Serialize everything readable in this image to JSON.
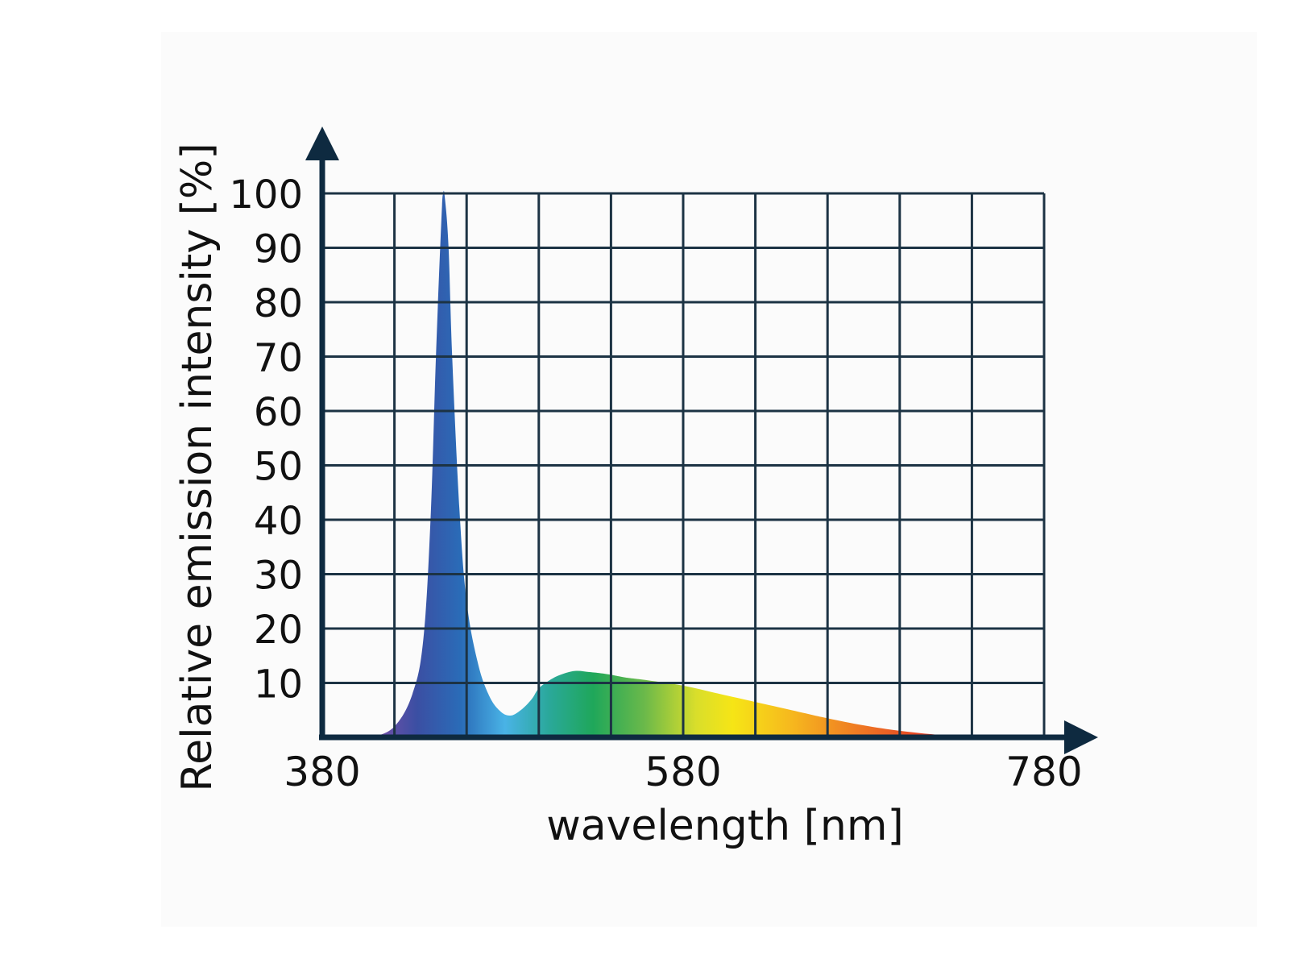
{
  "colors": {
    "background": "#ffffff",
    "plot_background": "#fafafa",
    "grid": "#1c3344",
    "axis": "#0e2a40",
    "text": "#111111"
  },
  "chart_data": {
    "type": "area",
    "title": "",
    "xlabel": "wavelength [nm]",
    "ylabel": "Relative emission intensity [%]",
    "xlim": [
      380,
      780
    ],
    "ylim": [
      0,
      100
    ],
    "x_ticks": [
      380,
      580,
      780
    ],
    "x_tick_labels": [
      "380",
      "580",
      "780"
    ],
    "x_grid_step": 40,
    "y_ticks": [
      10,
      20,
      30,
      40,
      50,
      60,
      70,
      80,
      90,
      100
    ],
    "y_tick_labels": [
      "10",
      "20",
      "30",
      "40",
      "50",
      "60",
      "70",
      "80",
      "90",
      "100"
    ],
    "grid": true,
    "fill": "visible-spectrum gradient",
    "series": [
      {
        "x": [
          408,
          420,
          430,
          436,
          440,
          443,
          446,
          447,
          448,
          450,
          452,
          456,
          460,
          466,
          472,
          478,
          484,
          490,
          496,
          500,
          506,
          512,
          520,
          528,
          534,
          540,
          548,
          560,
          580,
          600,
          620,
          640,
          660,
          680,
          700,
          720,
          740
        ],
        "y": [
          0,
          2,
          8,
          18,
          40,
          70,
          95,
          100,
          99,
          90,
          70,
          42,
          25,
          14,
          8,
          5,
          4,
          5,
          7,
          9,
          10.5,
          11.5,
          12.2,
          12,
          11.8,
          11.5,
          11,
          10.5,
          9.5,
          8,
          6.5,
          5,
          3.5,
          2.2,
          1.2,
          0.5,
          0
        ]
      }
    ]
  }
}
